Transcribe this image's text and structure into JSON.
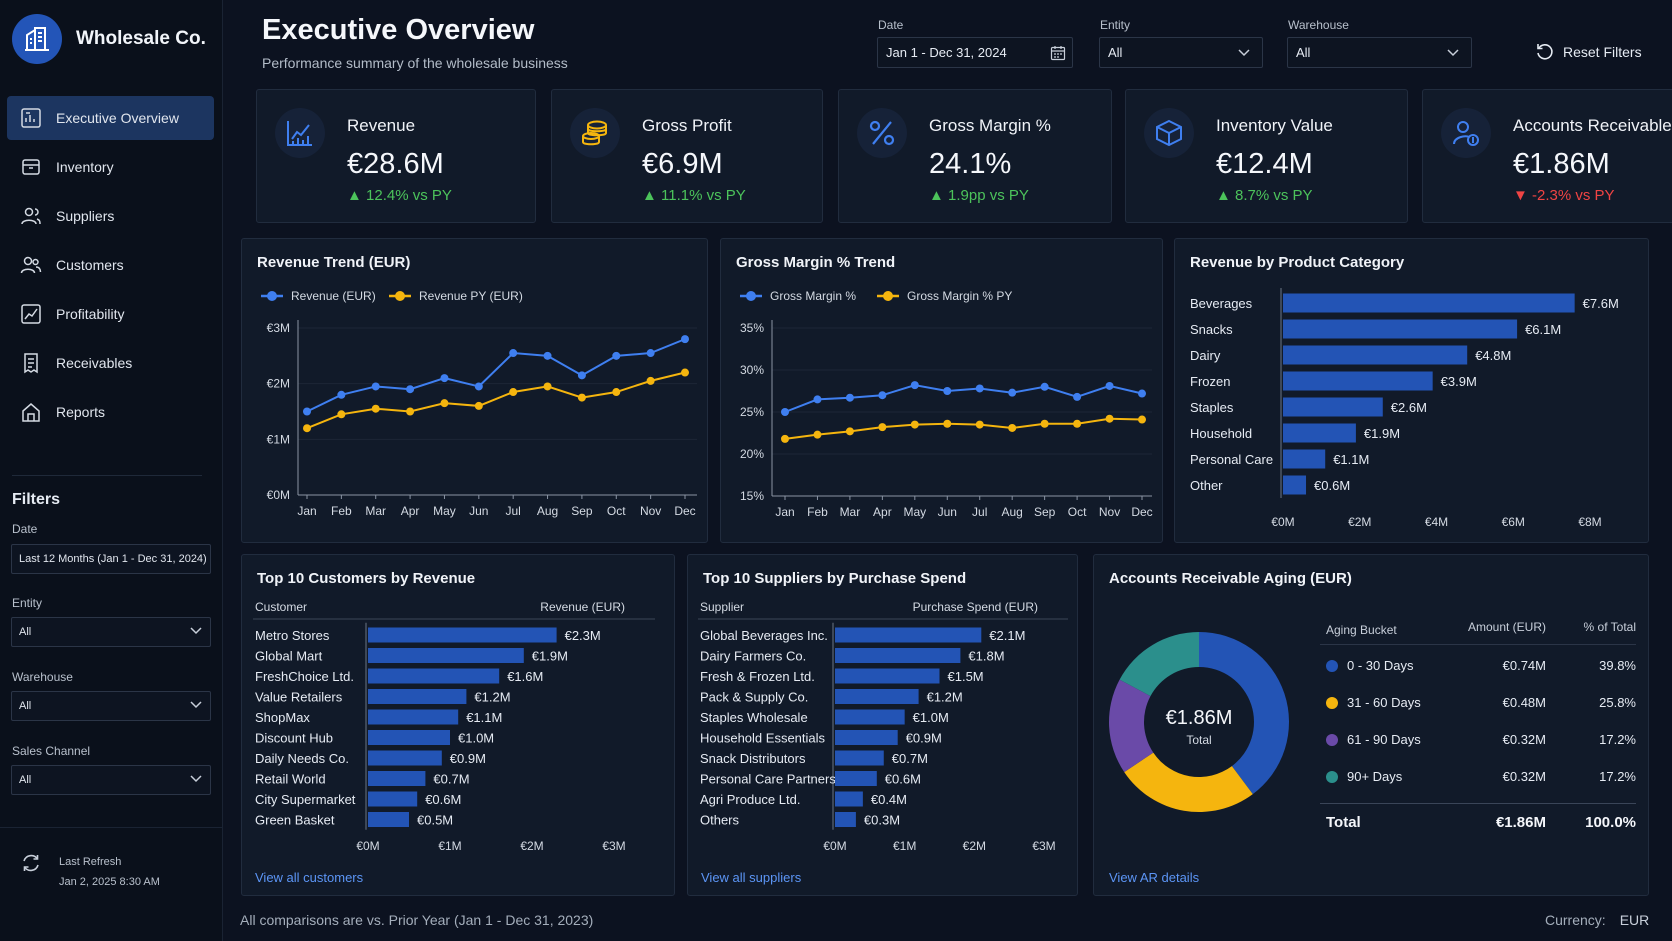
{
  "brand": {
    "name": "Wholesale Co."
  },
  "nav": [
    {
      "label": "Executive Overview",
      "icon": "dashboard-icon",
      "active": true
    },
    {
      "label": "Inventory",
      "icon": "box-icon"
    },
    {
      "label": "Suppliers",
      "icon": "users-icon"
    },
    {
      "label": "Customers",
      "icon": "user-group-icon"
    },
    {
      "label": "Profitability",
      "icon": "chart-icon"
    },
    {
      "label": "Receivables",
      "icon": "invoice-icon"
    },
    {
      "label": "Reports",
      "icon": "home-report-icon"
    }
  ],
  "sidebar_filters": {
    "title": "Filters",
    "date_label": "Date",
    "date_value": "Last 12 Months (Jan 1 - Dec 31, 2024)",
    "entity_label": "Entity",
    "entity_value": "All",
    "warehouse_label": "Warehouse",
    "warehouse_value": "All",
    "channel_label": "Sales Channel",
    "channel_value": "All"
  },
  "refresh": {
    "label": "Last Refresh",
    "value": "Jan 2, 2025 8:30 AM"
  },
  "header": {
    "title": "Executive Overview",
    "subtitle": "Performance summary of the wholesale business",
    "date_label": "Date",
    "date_value": "Jan 1 - Dec 31, 2024",
    "entity_label": "Entity",
    "entity_value": "All",
    "warehouse_label": "Warehouse",
    "warehouse_value": "All",
    "reset_label": "Reset Filters"
  },
  "kpis": [
    {
      "label": "Revenue",
      "value": "€28.6M",
      "delta": "▲ 12.4% vs PY",
      "trend": "up",
      "icon": "line-chart-icon"
    },
    {
      "label": "Gross Profit",
      "value": "€6.9M",
      "delta": "▲ 11.1% vs PY",
      "trend": "up",
      "icon": "coins-icon"
    },
    {
      "label": "Gross Margin %",
      "value": "24.1%",
      "delta": "▲ 1.9pp vs PY",
      "trend": "up",
      "icon": "percent-icon"
    },
    {
      "label": "Inventory Value",
      "value": "€12.4M",
      "delta": "▲ 8.7% vs PY",
      "trend": "up",
      "icon": "cube-icon"
    },
    {
      "label": "Accounts Receivable",
      "value": "€1.86M",
      "delta": "▼ -2.3% vs PY",
      "trend": "down",
      "icon": "user-dollar-icon"
    }
  ],
  "colors": {
    "blue": "#3f7ff0",
    "yellow": "#f5b50e",
    "purple": "#6a4aa8",
    "teal": "#2b8f8c",
    "bar": "#2354b5"
  },
  "chart_data": [
    {
      "type": "line",
      "title": "Revenue Trend (EUR)",
      "categories": [
        "Jan",
        "Feb",
        "Mar",
        "Apr",
        "May",
        "Jun",
        "Jul",
        "Aug",
        "Sep",
        "Oct",
        "Nov",
        "Dec"
      ],
      "yticks": [
        "€0M",
        "€1M",
        "€2M",
        "€3M"
      ],
      "ylim": [
        0,
        3
      ],
      "series": [
        {
          "name": "Revenue (EUR)",
          "color": "#3f7ff0",
          "values": [
            1.5,
            1.8,
            1.95,
            1.9,
            2.1,
            1.95,
            2.55,
            2.5,
            2.15,
            2.5,
            2.55,
            2.8
          ]
        },
        {
          "name": "Revenue PY (EUR)",
          "color": "#f5b50e",
          "values": [
            1.2,
            1.45,
            1.55,
            1.5,
            1.65,
            1.6,
            1.85,
            1.95,
            1.75,
            1.85,
            2.05,
            2.2
          ]
        }
      ]
    },
    {
      "type": "line",
      "title": "Gross Margin % Trend",
      "categories": [
        "Jan",
        "Feb",
        "Mar",
        "Apr",
        "May",
        "Jun",
        "Jul",
        "Aug",
        "Sep",
        "Oct",
        "Nov",
        "Dec"
      ],
      "yticks": [
        "15%",
        "20%",
        "25%",
        "30%",
        "35%"
      ],
      "ylim": [
        15,
        35
      ],
      "series": [
        {
          "name": "Gross Margin %",
          "color": "#3f7ff0",
          "values": [
            25,
            26.5,
            26.7,
            27,
            28.2,
            27.5,
            27.8,
            27.3,
            28,
            26.8,
            28.1,
            27.2
          ]
        },
        {
          "name": "Gross Margin % PY",
          "color": "#f5b50e",
          "values": [
            21.8,
            22.3,
            22.7,
            23.2,
            23.5,
            23.6,
            23.5,
            23.1,
            23.6,
            23.6,
            24.2,
            24.1
          ]
        }
      ]
    },
    {
      "type": "bar",
      "orientation": "horizontal",
      "title": "Revenue by Product Category",
      "categories": [
        "Beverages",
        "Snacks",
        "Dairy",
        "Frozen",
        "Staples",
        "Household",
        "Personal Care",
        "Other"
      ],
      "values": [
        7.6,
        6.1,
        4.8,
        3.9,
        2.6,
        1.9,
        1.1,
        0.6
      ],
      "labels": [
        "€7.6M",
        "€6.1M",
        "€4.8M",
        "€3.9M",
        "€2.6M",
        "€1.9M",
        "€1.1M",
        "€0.6M"
      ],
      "xticks": [
        "€0M",
        "€2M",
        "€4M",
        "€6M",
        "€8M"
      ],
      "xlim": [
        0,
        8
      ]
    },
    {
      "type": "bar",
      "orientation": "horizontal",
      "title": "Top 10 Customers by Revenue",
      "col1": "Customer",
      "col2": "Revenue (EUR)",
      "categories": [
        "Metro Stores",
        "Global Mart",
        "FreshChoice Ltd.",
        "Value Retailers",
        "ShopMax",
        "Discount Hub",
        "Daily Needs Co.",
        "Retail World",
        "City Supermarket",
        "Green Basket"
      ],
      "values": [
        2.3,
        1.9,
        1.6,
        1.2,
        1.1,
        1.0,
        0.9,
        0.7,
        0.6,
        0.5
      ],
      "labels": [
        "€2.3M",
        "€1.9M",
        "€1.6M",
        "€1.2M",
        "€1.1M",
        "€1.0M",
        "€0.9M",
        "€0.7M",
        "€0.6M",
        "€0.5M"
      ],
      "xticks": [
        "€0M",
        "€1M",
        "€2M",
        "€3M"
      ],
      "xlim": [
        0,
        3
      ],
      "link": "View all customers"
    },
    {
      "type": "bar",
      "orientation": "horizontal",
      "title": "Top 10 Suppliers by Purchase Spend",
      "col1": "Supplier",
      "col2": "Purchase Spend (EUR)",
      "categories": [
        "Global Beverages Inc.",
        "Dairy Farmers Co.",
        "Fresh & Frozen Ltd.",
        "Pack & Supply Co.",
        "Staples Wholesale",
        "Household Essentials",
        "Snack Distributors",
        "Personal Care Partners",
        "Agri Produce Ltd.",
        "Others"
      ],
      "values": [
        2.1,
        1.8,
        1.5,
        1.2,
        1.0,
        0.9,
        0.7,
        0.6,
        0.4,
        0.3
      ],
      "labels": [
        "€2.1M",
        "€1.8M",
        "€1.5M",
        "€1.2M",
        "€1.0M",
        "€0.9M",
        "€0.7M",
        "€0.6M",
        "€0.4M",
        "€0.3M"
      ],
      "xticks": [
        "€0M",
        "€1M",
        "€2M",
        "€3M"
      ],
      "xlim": [
        0,
        3
      ],
      "link": "View all suppliers"
    },
    {
      "type": "pie",
      "title": "Accounts Receivable Aging (EUR)",
      "center_value": "€1.86M",
      "center_label": "Total",
      "table_headers": [
        "Aging Bucket",
        "Amount (EUR)",
        "% of Total"
      ],
      "slices": [
        {
          "name": "0 - 30 Days",
          "amount": "€0.74M",
          "pct_label": "39.8%",
          "value": 39.8,
          "color": "#2354b5"
        },
        {
          "name": "31 - 60 Days",
          "amount": "€0.48M",
          "pct_label": "25.8%",
          "value": 25.8,
          "color": "#f5b50e"
        },
        {
          "name": "61 - 90 Days",
          "amount": "€0.32M",
          "pct_label": "17.2%",
          "value": 17.2,
          "color": "#6a4aa8"
        },
        {
          "name": "90+ Days",
          "amount": "€0.32M",
          "pct_label": "17.2%",
          "value": 17.2,
          "color": "#2b8f8c"
        }
      ],
      "total_label": "Total",
      "total_amount": "€1.86M",
      "total_pct": "100.0%",
      "link": "View AR details"
    }
  ],
  "footer": {
    "note": "All comparisons are vs. Prior Year (Jan 1 - Dec 31, 2023)",
    "currency_label": "Currency:",
    "currency_value": "EUR"
  }
}
